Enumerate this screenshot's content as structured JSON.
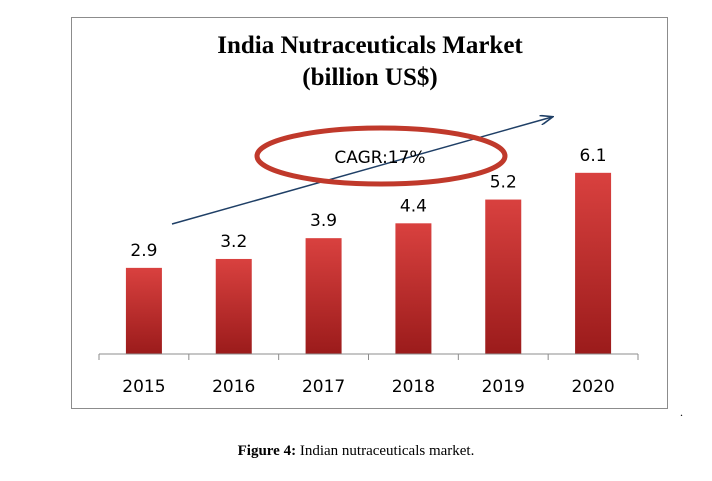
{
  "figure": {
    "caption_label": "Figure 4:",
    "caption_text": " Indian nutraceuticals market.",
    "stray_mark": "."
  },
  "annotation": {
    "text": "CAGR:17%",
    "ellipse_color": "#c0392b"
  },
  "colors": {
    "bar_top": "#d9413f",
    "bar_bottom": "#9b1b1b",
    "axis": "#8c8c8c",
    "arrow": "#1f3f66"
  },
  "chart_data": {
    "type": "bar",
    "title": "India Nutraceuticals  Market",
    "subtitle": "(billion  US$)",
    "categories": [
      "2015",
      "2016",
      "2017",
      "2018",
      "2019",
      "2020"
    ],
    "values": [
      2.9,
      3.2,
      3.9,
      4.4,
      5.2,
      6.1
    ],
    "data_labels": [
      "2.9",
      "3.2",
      "3.9",
      "4.4",
      "5.2",
      "6.1"
    ],
    "ylim": [
      0,
      6.7
    ],
    "grid": false,
    "legend": "none"
  }
}
